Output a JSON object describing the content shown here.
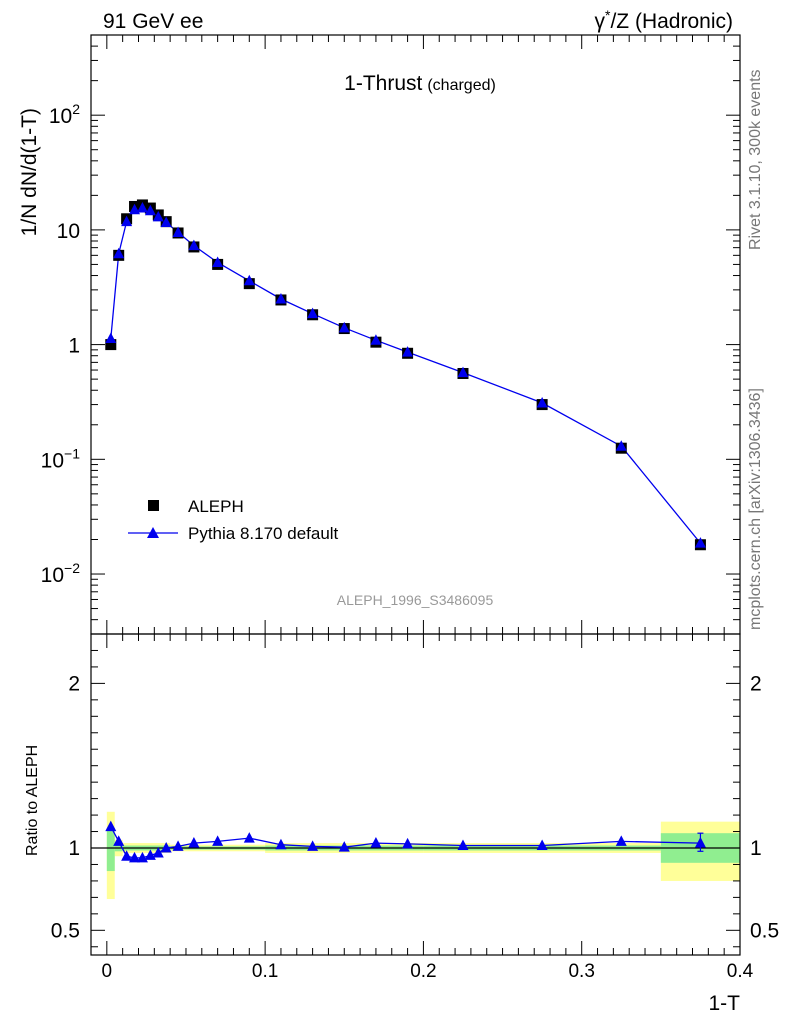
{
  "header": {
    "left": "91 GeV ee",
    "right_gamma": "γ",
    "right_sup": "*",
    "right_rest": "/Z (Hadronic)"
  },
  "side": {
    "rivet": "Rivet 3.1.10,  300k events",
    "mcplots": "mcplots.cern.ch [arXiv:1306.3436]"
  },
  "chart_data": [
    {
      "type": "scatter",
      "title": "1-Thrust",
      "subtitle": "(charged)",
      "analysis_id": "ALEPH_1996_S3486095",
      "ylabel": "1/N dN/d(1-T)",
      "yscale": "log",
      "ylim": [
        0.003,
        500
      ],
      "xlim": [
        -0.01,
        0.4
      ],
      "y_ticks": [
        {
          "label": "10",
          "sup": "2"
        },
        {
          "label": "10",
          "sup": ""
        },
        {
          "label": "1",
          "sup": ""
        },
        {
          "label": "10",
          "sup": "−1"
        },
        {
          "label": "10",
          "sup": "−2"
        }
      ],
      "legend": {
        "placement": "lower-left",
        "data_label": "ALEPH",
        "mc_label": "Pythia 8.170 default"
      },
      "series": [
        {
          "name": "ALEPH",
          "marker": "square",
          "color": "#000000",
          "x": [
            0.0025,
            0.0075,
            0.0125,
            0.0175,
            0.0225,
            0.0275,
            0.0325,
            0.0375,
            0.045,
            0.055,
            0.07,
            0.09,
            0.11,
            0.13,
            0.15,
            0.17,
            0.19,
            0.225,
            0.275,
            0.325,
            0.375
          ],
          "y": [
            1.0,
            6.0,
            12.5,
            16.0,
            16.5,
            15.5,
            13.5,
            11.8,
            9.4,
            7.1,
            5.0,
            3.4,
            2.45,
            1.82,
            1.38,
            1.05,
            0.84,
            0.56,
            0.3,
            0.125,
            0.018
          ]
        },
        {
          "name": "Pythia 8.170 default",
          "marker": "triangle",
          "color": "#0000ee",
          "x": [
            0.0025,
            0.0075,
            0.0125,
            0.0175,
            0.0225,
            0.0275,
            0.0325,
            0.0375,
            0.045,
            0.055,
            0.07,
            0.09,
            0.11,
            0.13,
            0.15,
            0.17,
            0.19,
            0.225,
            0.275,
            0.325,
            0.375
          ],
          "y": [
            1.13,
            6.2,
            11.8,
            15.0,
            15.5,
            14.7,
            13.0,
            11.6,
            9.5,
            7.3,
            5.2,
            3.6,
            2.5,
            1.86,
            1.4,
            1.09,
            0.86,
            0.57,
            0.31,
            0.13,
            0.0186
          ]
        }
      ]
    },
    {
      "type": "scatter",
      "ylabel": "Ratio to ALEPH",
      "xlabel": "1-T",
      "ylim": [
        0.35,
        2.3
      ],
      "xlim": [
        -0.01,
        0.4
      ],
      "x_ticks": [
        {
          "value": 0,
          "label": "0"
        },
        {
          "value": 0.1,
          "label": "0.1"
        },
        {
          "value": 0.2,
          "label": "0.2"
        },
        {
          "value": 0.3,
          "label": "0.3"
        },
        {
          "value": 0.4,
          "label": "0.4"
        }
      ],
      "y_ticks": [
        {
          "value": 2,
          "label": "2"
        },
        {
          "value": 1,
          "label": "1"
        },
        {
          "value": 0.5,
          "label": "0.5"
        }
      ],
      "bands": {
        "stat_color": "#90ee90",
        "total_color": "#ffff99",
        "bins": [
          {
            "x0": 0.0,
            "x1": 0.005,
            "stat": [
              0.86,
              1.12
            ],
            "total": [
              0.69,
              1.22
            ]
          },
          {
            "x0": 0.005,
            "x1": 0.01,
            "stat": [
              0.98,
              1.03
            ],
            "total": [
              0.95,
              1.05
            ]
          },
          {
            "x0": 0.01,
            "x1": 0.04,
            "stat": [
              0.985,
              1.015
            ],
            "total": [
              0.97,
              1.03
            ]
          },
          {
            "x0": 0.04,
            "x1": 0.1,
            "stat": [
              0.99,
              1.01
            ],
            "total": [
              0.98,
              1.02
            ]
          },
          {
            "x0": 0.1,
            "x1": 0.2,
            "stat": [
              0.985,
              1.015
            ],
            "total": [
              0.97,
              1.03
            ]
          },
          {
            "x0": 0.2,
            "x1": 0.35,
            "stat": [
              0.985,
              1.015
            ],
            "total": [
              0.97,
              1.03
            ]
          },
          {
            "x0": 0.35,
            "x1": 0.4,
            "stat": [
              0.91,
              1.09
            ],
            "total": [
              0.8,
              1.16
            ]
          }
        ]
      },
      "series": [
        {
          "name": "Pythia 8.170 default / ALEPH",
          "marker": "triangle",
          "color": "#0000ee",
          "x": [
            0.0025,
            0.0075,
            0.0125,
            0.0175,
            0.0225,
            0.0275,
            0.0325,
            0.0375,
            0.045,
            0.055,
            0.07,
            0.09,
            0.11,
            0.13,
            0.15,
            0.17,
            0.19,
            0.225,
            0.275,
            0.325,
            0.375
          ],
          "y": [
            1.13,
            1.04,
            0.95,
            0.94,
            0.94,
            0.955,
            0.97,
            1.0,
            1.01,
            1.03,
            1.04,
            1.06,
            1.02,
            1.01,
            1.005,
            1.03,
            1.025,
            1.015,
            1.015,
            1.04,
            1.03
          ],
          "yerr_last": [
            0.98,
            1.09
          ]
        }
      ]
    }
  ]
}
